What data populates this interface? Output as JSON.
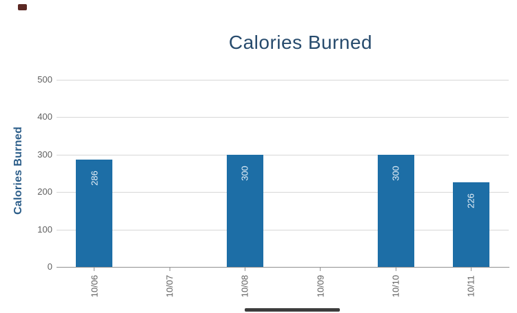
{
  "chart_data": {
    "type": "bar",
    "title": "Calories Burned",
    "xlabel": "",
    "ylabel": "Calories Burned",
    "categories": [
      "10/06",
      "10/07",
      "10/08",
      "10/09",
      "10/10",
      "10/11"
    ],
    "values": [
      286,
      null,
      300,
      null,
      300,
      226
    ],
    "yticks": [
      0,
      100,
      200,
      300,
      400,
      500
    ],
    "ylim": [
      0,
      500
    ],
    "grid": true,
    "legend": false,
    "bar_color": "#1d6ea6",
    "bar_value_text_color": "#e9f2f9",
    "title_color": "#274b6d",
    "ylabel_color": "#2a5c88",
    "tick_label_color": "#606060",
    "gridline_color": "#d7d7d7",
    "axis_line_color": "#909090",
    "tick_mark_color": "#909090"
  },
  "decorations": {
    "top_left_mark_color": "#5b2823",
    "scrollbar_thumb_color": "#3c3c3c"
  }
}
